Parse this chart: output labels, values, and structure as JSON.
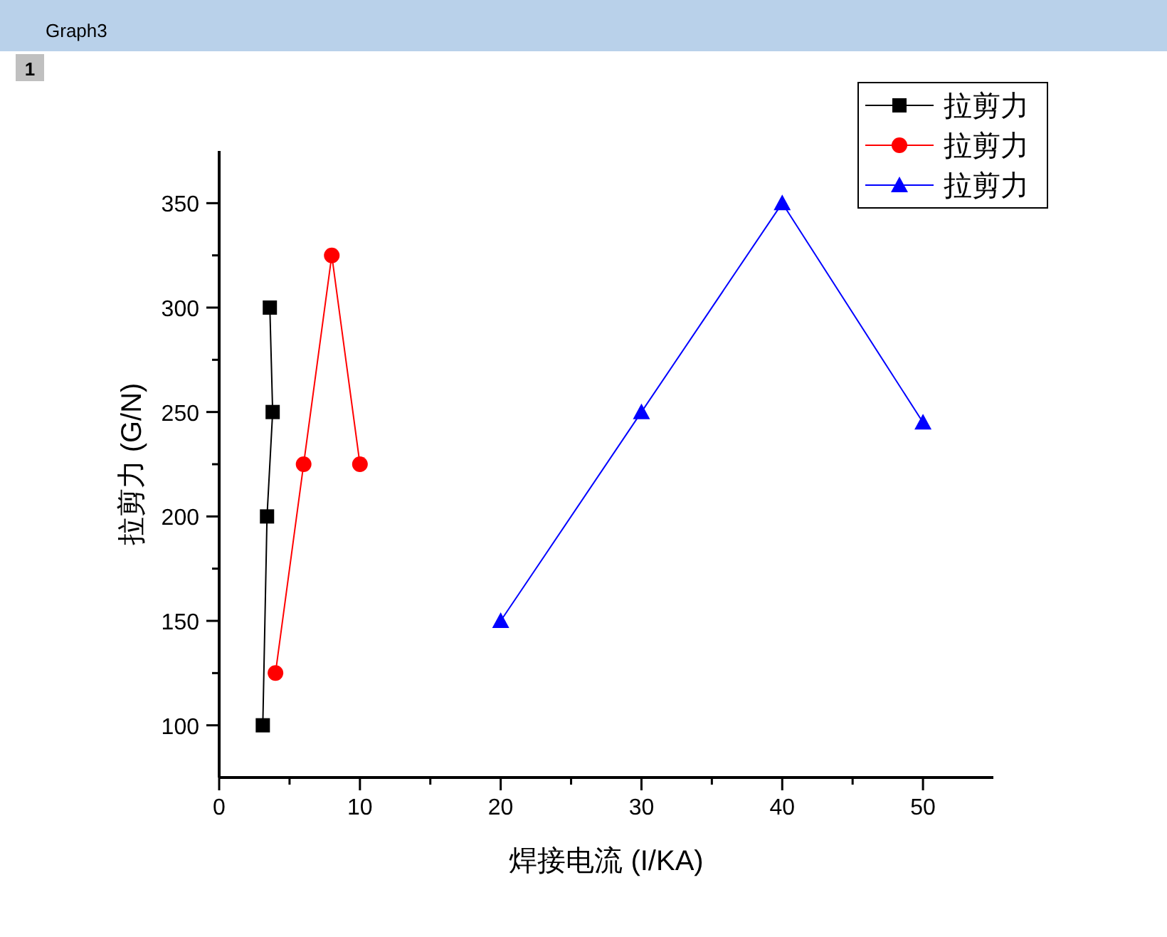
{
  "chart_data": {
    "type": "line",
    "title": "Graph3",
    "xlabel": "焊接电流 (I/KA)",
    "ylabel": "拉剪力 (G/N)",
    "annotations": [
      "1"
    ],
    "xlim": [
      0,
      55
    ],
    "xticks": [
      0,
      10,
      20,
      30,
      40,
      50
    ],
    "ylim": [
      75,
      375
    ],
    "yticks": [
      100,
      150,
      200,
      250,
      300,
      350
    ],
    "grid": false,
    "legend": "top right",
    "series": [
      {
        "name": "拉剪力",
        "color": "#000000",
        "marker": "square",
        "x": [
          3.1,
          3.4,
          3.8,
          3.6
        ],
        "values": [
          100,
          200,
          250,
          300
        ]
      },
      {
        "name": "拉剪力",
        "color": "#ff0000",
        "marker": "circle",
        "x": [
          4,
          6,
          8,
          10
        ],
        "values": [
          125,
          225,
          325,
          225
        ]
      },
      {
        "name": "拉剪力",
        "color": "#0000ff",
        "marker": "triangle",
        "x": [
          20,
          30,
          40,
          50
        ],
        "values": [
          150,
          250,
          350,
          245
        ]
      }
    ]
  }
}
